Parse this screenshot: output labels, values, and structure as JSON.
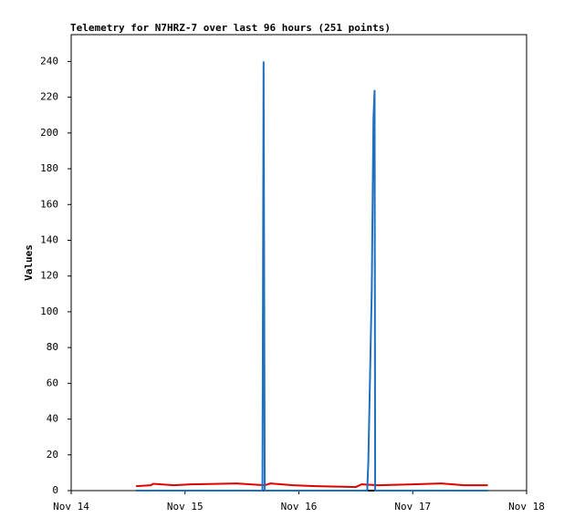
{
  "chart_data": {
    "type": "line",
    "title": "Telemetry for N7HRZ-7 over last 96 hours (251 points)",
    "y_label": "Values",
    "xlim": [
      14,
      18
    ],
    "xticks": [
      {
        "value": 14,
        "label": "Nov 14"
      },
      {
        "value": 15,
        "label": "Nov 15"
      },
      {
        "value": 16,
        "label": "Nov 16"
      },
      {
        "value": 17,
        "label": "Nov 17"
      },
      {
        "value": 18,
        "label": "Nov 18"
      }
    ],
    "ylim": [
      0,
      255
    ],
    "yticks": [
      0,
      20,
      40,
      60,
      80,
      100,
      120,
      140,
      160,
      180,
      200,
      220,
      240
    ],
    "grid": false,
    "series": [
      {
        "color": "#000000",
        "x": [
          14.57,
          17.66
        ],
        "values": [
          0,
          0
        ]
      },
      {
        "color": "#e00000",
        "x": [
          14.57,
          14.7,
          14.72,
          14.9,
          15.05,
          15.45,
          15.7,
          15.75,
          15.95,
          16.15,
          16.5,
          16.55,
          16.7,
          17.0,
          17.25,
          17.45,
          17.66
        ],
        "values": [
          2.5,
          3,
          3.8,
          3,
          3.5,
          4,
          3,
          4,
          3,
          2.5,
          2,
          3.5,
          3,
          3.5,
          4,
          3,
          3
        ]
      },
      {
        "color": "#1f6fbf",
        "x": [
          14.57,
          15.68,
          15.69,
          15.695,
          15.7,
          16.6,
          16.61,
          16.62,
          16.63,
          16.64,
          16.645,
          16.65,
          16.655,
          16.665,
          16.67,
          17.66
        ],
        "values": [
          0,
          0,
          240,
          120,
          0,
          0,
          16,
          48,
          80,
          112,
          144,
          176,
          208,
          224,
          0,
          0
        ]
      }
    ]
  }
}
